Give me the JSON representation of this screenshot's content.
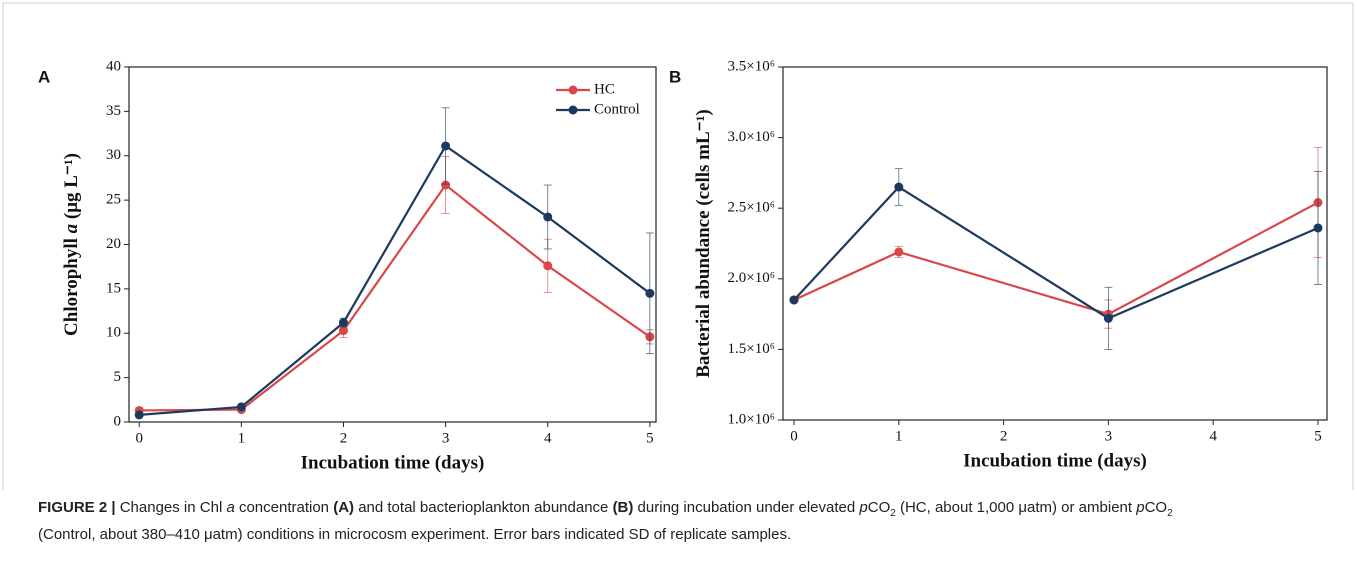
{
  "chart_data": [
    {
      "type": "line",
      "panel": "A",
      "xlabel": "Incubation time (days)",
      "ylabel": [
        "Chlorophyll ",
        "a",
        " (μg L⁻¹)"
      ],
      "x": [
        0,
        1,
        2,
        3,
        4,
        5
      ],
      "series": [
        {
          "name": "HC",
          "color": "#d9474a",
          "values": [
            1.3,
            1.4,
            10.3,
            26.7,
            17.6,
            9.6
          ],
          "errors": [
            0.3,
            0.2,
            0.8,
            3.2,
            3.0,
            0.8
          ]
        },
        {
          "name": "Control",
          "color": "#1b3a5e",
          "values": [
            0.8,
            1.7,
            11.2,
            31.1,
            23.1,
            14.5
          ],
          "errors": [
            0.1,
            0.2,
            0.5,
            4.3,
            3.6,
            6.8
          ]
        }
      ],
      "xlim": [
        -0.1,
        5.06
      ],
      "xticks": [
        0,
        1,
        2,
        3,
        4,
        5
      ],
      "ylim": [
        0,
        40
      ],
      "yticks": [
        0,
        5,
        10,
        15,
        20,
        25,
        30,
        35,
        40
      ],
      "legend": "upper right"
    },
    {
      "type": "line",
      "panel": "B",
      "xlabel": "Incubation time (days)",
      "ylabel": [
        "Bacterial abundance (cells mL⁻¹)"
      ],
      "x": [
        0,
        1,
        3,
        5
      ],
      "series": [
        {
          "name": "HC",
          "color": "#d9474a",
          "values": [
            1850000,
            2190000,
            1750000,
            2540000
          ],
          "errors": [
            10000,
            40000,
            100000,
            390000
          ]
        },
        {
          "name": "Control",
          "color": "#1b3a5e",
          "values": [
            1850000,
            2650000,
            1720000,
            2360000
          ],
          "errors": [
            10000,
            130000,
            220000,
            400000
          ]
        }
      ],
      "xlim": [
        -0.105,
        5.086
      ],
      "xticks": [
        0,
        1,
        2,
        3,
        4,
        5
      ],
      "ylim": [
        1000000,
        3500000
      ],
      "yticks": [
        {
          "value": 1000000,
          "label": "1.0×10⁶"
        },
        {
          "value": 1500000,
          "label": "1.5×10⁶"
        },
        {
          "value": 2000000,
          "label": "2.0×10⁶"
        },
        {
          "value": 2500000,
          "label": "2.5×10⁶"
        },
        {
          "value": 3000000,
          "label": "3.0×10⁶"
        },
        {
          "value": 3500000,
          "label": "3.5×10⁶"
        }
      ]
    }
  ],
  "caption": [
    "FIGURE 2 |",
    " Changes in Chl ",
    "a",
    " concentration ",
    "(A)",
    " and total bacterioplankton abundance ",
    "(B)",
    " during incubation under elevated ",
    "p",
    "CO",
    "2",
    " (HC, about 1,000 μatm) or ambient ",
    "p",
    "CO",
    "2",
    " (Control, about 380–410 μatm) conditions in microcosm experiment. Error bars indicated SD of replicate samples."
  ]
}
